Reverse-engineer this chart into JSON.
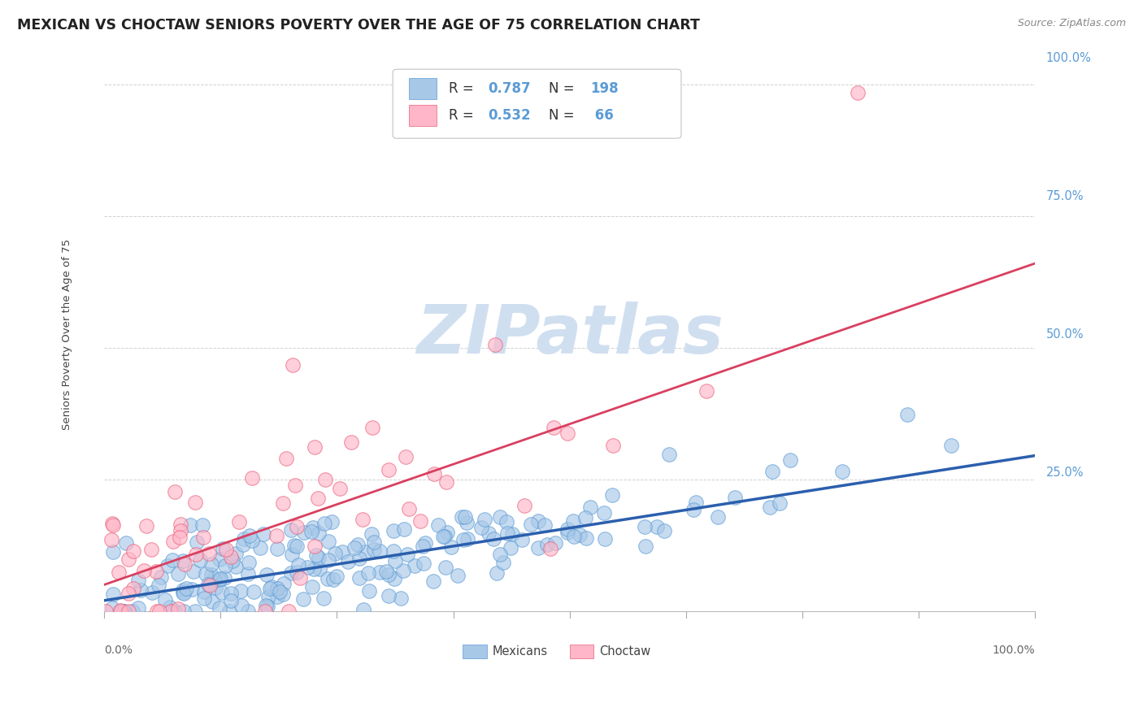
{
  "title": "MEXICAN VS CHOCTAW SENIORS POVERTY OVER THE AGE OF 75 CORRELATION CHART",
  "source": "Source: ZipAtlas.com",
  "ylabel": "Seniors Poverty Over the Age of 75",
  "mexican_R": 0.787,
  "mexican_N": 198,
  "choctaw_R": 0.532,
  "choctaw_N": 66,
  "mexican_color": "#a8c8e8",
  "mexican_edge_color": "#5b9bd5",
  "choctaw_color": "#ffb6c8",
  "choctaw_edge_color": "#e8607a",
  "mexican_line_color": "#2b5fad",
  "choctaw_line_color": "#d94060",
  "background_color": "#ffffff",
  "watermark_color": "#d0dff0",
  "grid_color": "#cccccc",
  "right_label_color": "#5b9bd5",
  "legend_text_color": "#222222",
  "legend_value_color": "#5b9bd5",
  "title_color": "#222222",
  "source_color": "#888888",
  "ylabel_color": "#444444",
  "xlabel_color": "#666666",
  "seed": 42,
  "mexican_trend": [
    0.02,
    0.295
  ],
  "choctaw_trend": [
    0.05,
    0.66
  ],
  "ylim": [
    0.0,
    1.05
  ],
  "right_yticks": [
    1.0,
    0.75,
    0.5,
    0.25
  ],
  "right_ytick_labels": [
    "100.0%",
    "75.0%",
    "50.0%",
    "25.0%"
  ]
}
